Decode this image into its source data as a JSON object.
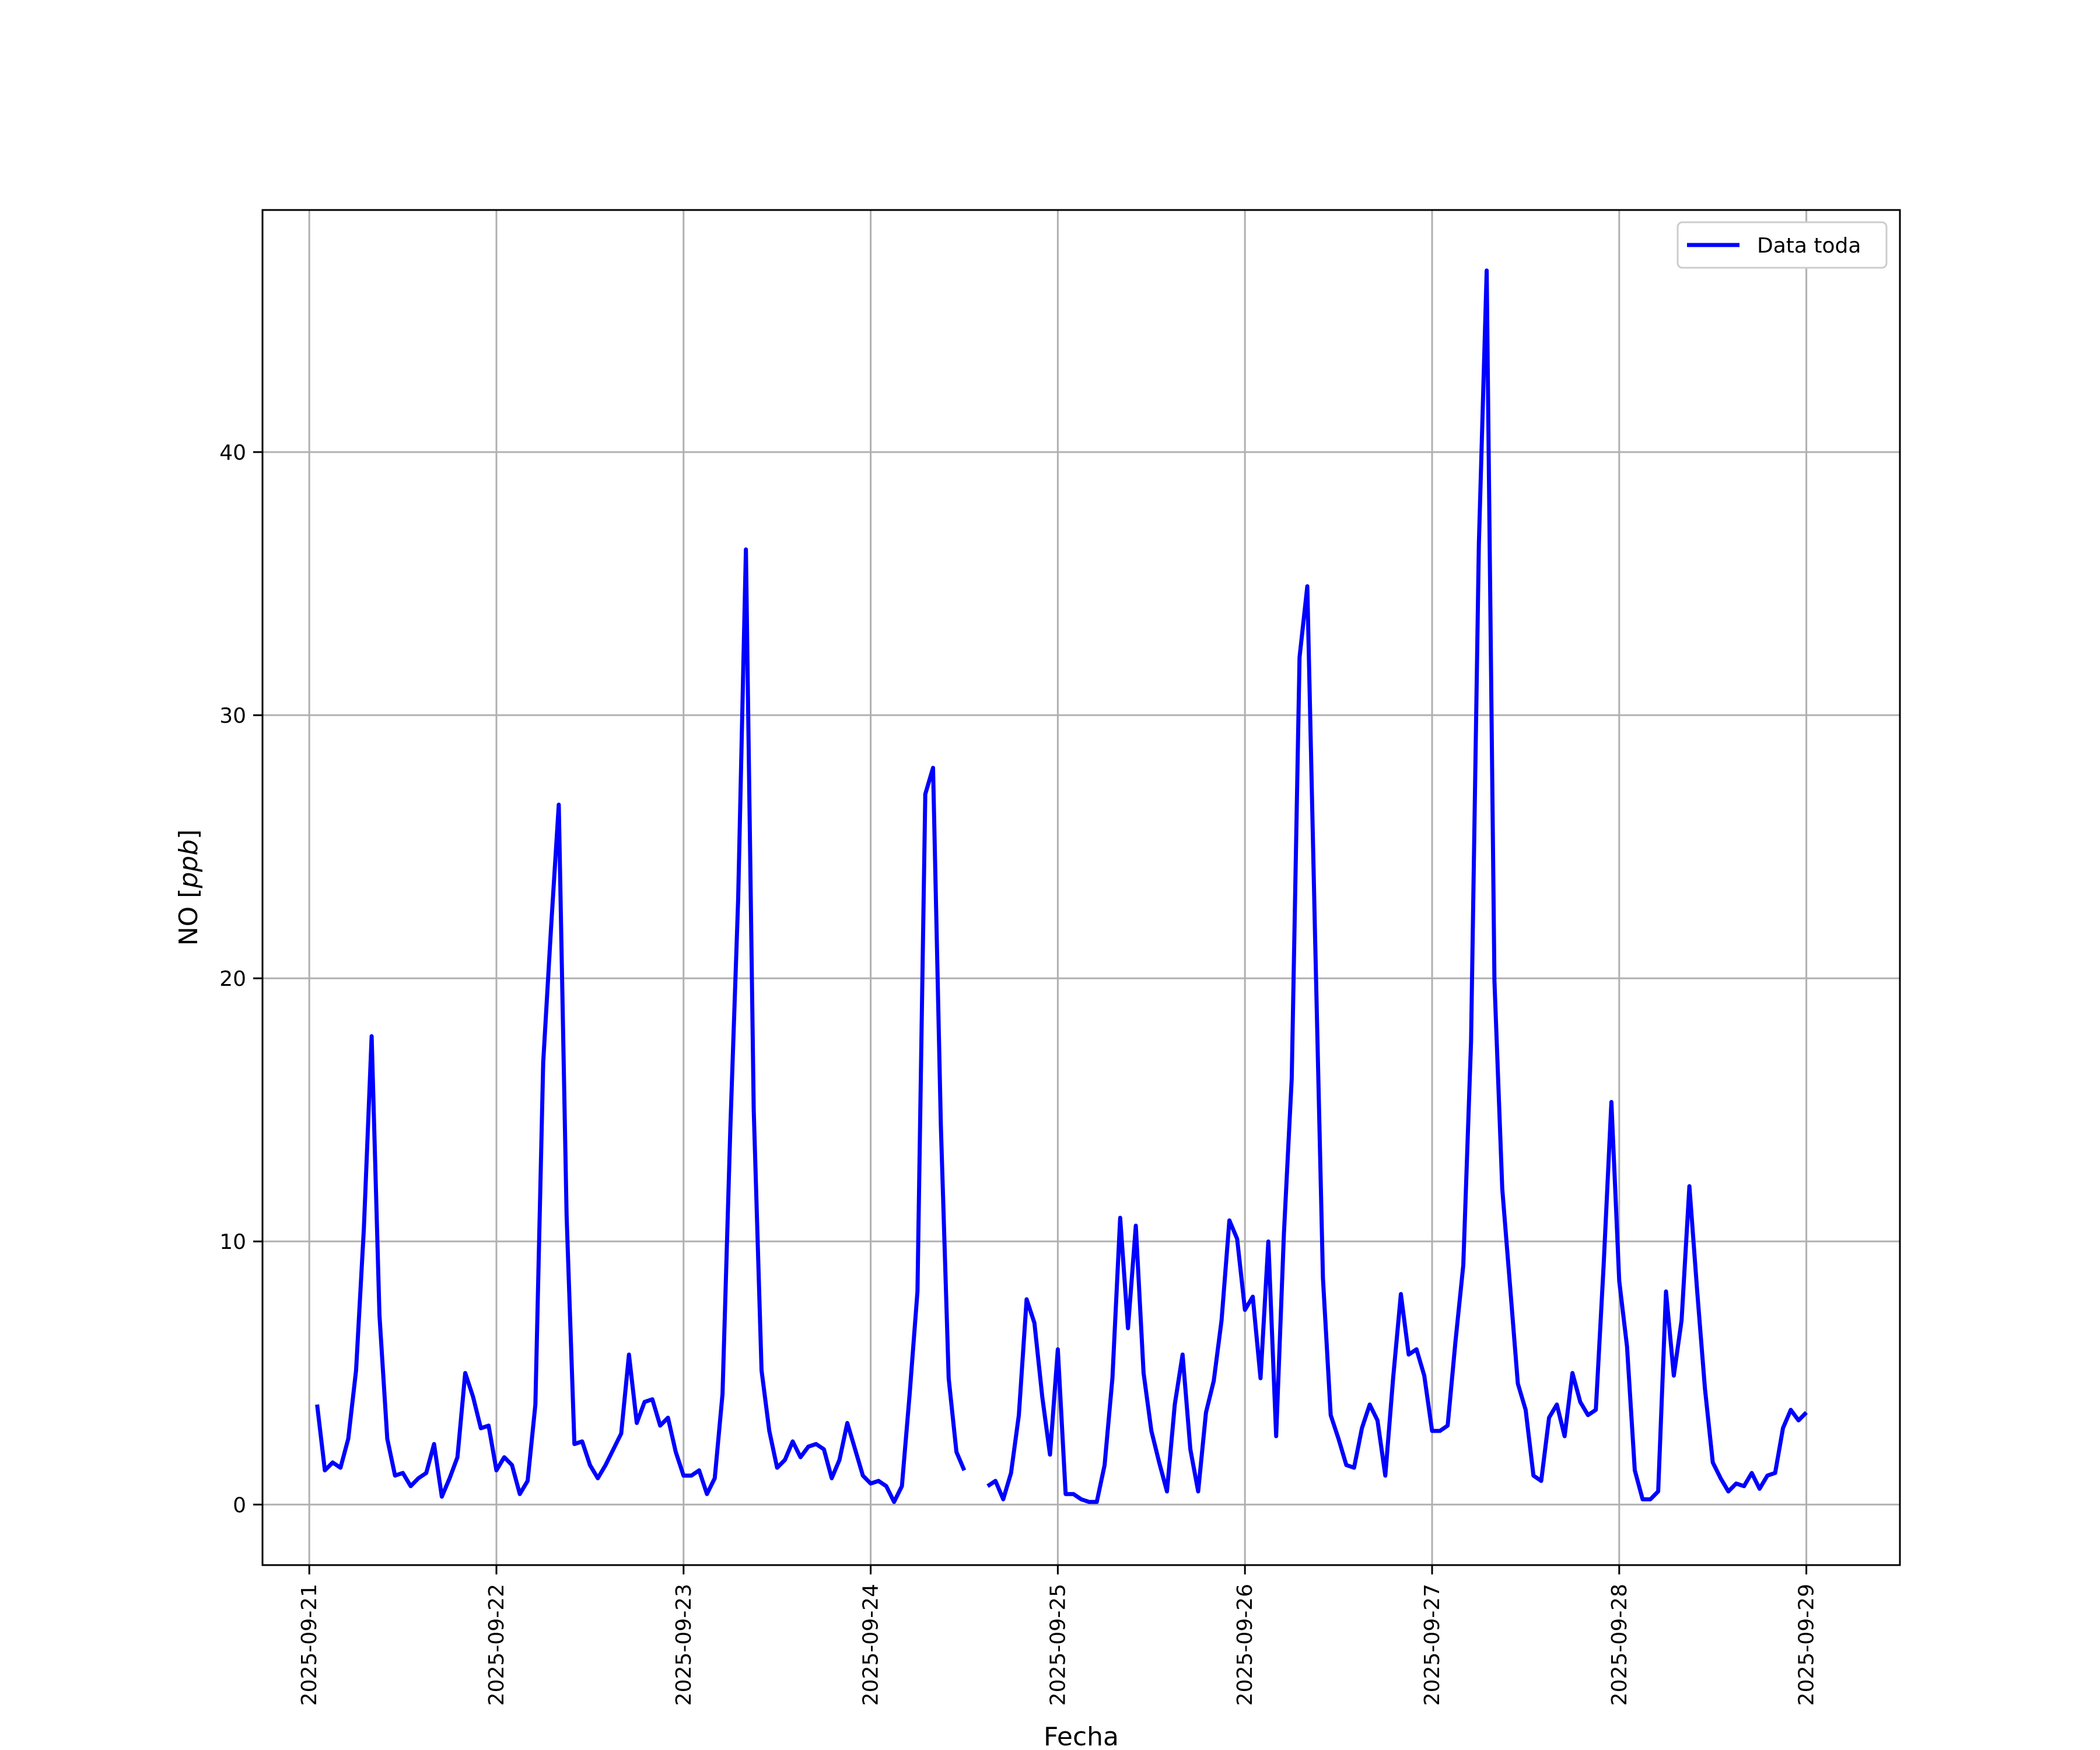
{
  "chart_data": {
    "type": "line",
    "title": "",
    "xlabel": "Fecha",
    "ylabel_main": "NO",
    "ylabel_unit": "ppb",
    "x_tick_labels": [
      "2025-09-21",
      "2025-09-22",
      "2025-09-23",
      "2025-09-24",
      "2025-09-25",
      "2025-09-26",
      "2025-09-27",
      "2025-09-28",
      "2025-09-29"
    ],
    "x_range": [
      "2025-09-20 18:00",
      "2025-09-29 12:00"
    ],
    "y_ticks": [
      0,
      10,
      20,
      30,
      40
    ],
    "ylim": [
      -2.3,
      49.2
    ],
    "grid": true,
    "legend_position": "top-right",
    "series": [
      {
        "name": "Data toda",
        "color": "#0000ff",
        "x": [
          "2025-09-21 01:00",
          "2025-09-21 02:00",
          "2025-09-21 03:00",
          "2025-09-21 04:00",
          "2025-09-21 05:00",
          "2025-09-21 06:00",
          "2025-09-21 07:00",
          "2025-09-21 08:00",
          "2025-09-21 09:00",
          "2025-09-21 10:00",
          "2025-09-21 11:00",
          "2025-09-21 12:00",
          "2025-09-21 13:00",
          "2025-09-21 14:00",
          "2025-09-21 15:00",
          "2025-09-21 16:00",
          "2025-09-21 17:00",
          "2025-09-21 18:00",
          "2025-09-21 19:00",
          "2025-09-21 20:00",
          "2025-09-21 21:00",
          "2025-09-21 22:00",
          "2025-09-21 23:00",
          "2025-09-22 00:00",
          "2025-09-22 01:00",
          "2025-09-22 02:00",
          "2025-09-22 03:00",
          "2025-09-22 04:00",
          "2025-09-22 05:00",
          "2025-09-22 06:00",
          "2025-09-22 07:00",
          "2025-09-22 08:00",
          "2025-09-22 09:00",
          "2025-09-22 10:00",
          "2025-09-22 11:00",
          "2025-09-22 12:00",
          "2025-09-22 13:00",
          "2025-09-22 14:00",
          "2025-09-22 15:00",
          "2025-09-22 16:00",
          "2025-09-22 17:00",
          "2025-09-22 18:00",
          "2025-09-22 19:00",
          "2025-09-22 20:00",
          "2025-09-22 21:00",
          "2025-09-22 22:00",
          "2025-09-22 23:00",
          "2025-09-23 00:00",
          "2025-09-23 01:00",
          "2025-09-23 02:00",
          "2025-09-23 03:00",
          "2025-09-23 04:00",
          "2025-09-23 05:00",
          "2025-09-23 06:00",
          "2025-09-23 07:00",
          "2025-09-23 08:00",
          "2025-09-23 09:00",
          "2025-09-23 10:00",
          "2025-09-23 11:00",
          "2025-09-23 12:00",
          "2025-09-23 13:00",
          "2025-09-23 14:00",
          "2025-09-23 15:00",
          "2025-09-23 16:00",
          "2025-09-23 17:00",
          "2025-09-23 18:00",
          "2025-09-23 19:00",
          "2025-09-23 20:00",
          "2025-09-23 21:00",
          "2025-09-23 22:00",
          "2025-09-23 23:00",
          "2025-09-24 00:00",
          "2025-09-24 01:00",
          "2025-09-24 02:00",
          "2025-09-24 03:00",
          "2025-09-24 04:00",
          "2025-09-24 05:00",
          "2025-09-24 06:00",
          "2025-09-24 07:00",
          "2025-09-24 08:00",
          "2025-09-24 09:00",
          "2025-09-24 10:00",
          "2025-09-24 11:00",
          "2025-09-24 12:00",
          "2025-09-24 15:00",
          "2025-09-24 16:00",
          "2025-09-24 17:00",
          "2025-09-24 18:00",
          "2025-09-24 19:00",
          "2025-09-24 20:00",
          "2025-09-24 21:00",
          "2025-09-24 22:00",
          "2025-09-24 23:00",
          "2025-09-25 00:00",
          "2025-09-25 01:00",
          "2025-09-25 02:00",
          "2025-09-25 03:00",
          "2025-09-25 04:00",
          "2025-09-25 05:00",
          "2025-09-25 06:00",
          "2025-09-25 07:00",
          "2025-09-25 08:00",
          "2025-09-25 09:00",
          "2025-09-25 10:00",
          "2025-09-25 11:00",
          "2025-09-25 12:00",
          "2025-09-25 13:00",
          "2025-09-25 14:00",
          "2025-09-25 15:00",
          "2025-09-25 16:00",
          "2025-09-25 17:00",
          "2025-09-25 18:00",
          "2025-09-25 19:00",
          "2025-09-25 20:00",
          "2025-09-25 21:00",
          "2025-09-25 22:00",
          "2025-09-25 23:00",
          "2025-09-26 00:00",
          "2025-09-26 01:00",
          "2025-09-26 02:00",
          "2025-09-26 03:00",
          "2025-09-26 04:00",
          "2025-09-26 05:00",
          "2025-09-26 06:00",
          "2025-09-26 07:00",
          "2025-09-26 08:00",
          "2025-09-26 09:00",
          "2025-09-26 10:00",
          "2025-09-26 11:00",
          "2025-09-26 12:00",
          "2025-09-26 13:00",
          "2025-09-26 14:00",
          "2025-09-26 15:00",
          "2025-09-26 16:00",
          "2025-09-26 17:00",
          "2025-09-26 18:00",
          "2025-09-26 19:00",
          "2025-09-26 20:00",
          "2025-09-26 21:00",
          "2025-09-26 22:00",
          "2025-09-26 23:00",
          "2025-09-27 00:00",
          "2025-09-27 01:00",
          "2025-09-27 02:00",
          "2025-09-27 03:00",
          "2025-09-27 04:00",
          "2025-09-27 05:00",
          "2025-09-27 06:00",
          "2025-09-27 07:00",
          "2025-09-27 08:00",
          "2025-09-27 09:00",
          "2025-09-27 10:00",
          "2025-09-27 11:00",
          "2025-09-27 12:00",
          "2025-09-27 13:00",
          "2025-09-27 14:00",
          "2025-09-27 15:00",
          "2025-09-27 16:00",
          "2025-09-27 17:00",
          "2025-09-27 18:00",
          "2025-09-27 19:00",
          "2025-09-27 20:00",
          "2025-09-27 21:00",
          "2025-09-27 22:00",
          "2025-09-27 23:00",
          "2025-09-28 00:00",
          "2025-09-28 01:00",
          "2025-09-28 02:00",
          "2025-09-28 03:00",
          "2025-09-28 04:00",
          "2025-09-28 05:00",
          "2025-09-28 06:00",
          "2025-09-28 07:00",
          "2025-09-28 08:00",
          "2025-09-28 09:00",
          "2025-09-28 10:00",
          "2025-09-28 11:00",
          "2025-09-28 12:00",
          "2025-09-28 13:00",
          "2025-09-28 14:00",
          "2025-09-28 15:00",
          "2025-09-28 16:00",
          "2025-09-28 17:00",
          "2025-09-28 18:00",
          "2025-09-28 19:00",
          "2025-09-28 20:00",
          "2025-09-28 21:00",
          "2025-09-28 22:00",
          "2025-09-28 23:00",
          "2025-09-29 00:00"
        ],
        "y": [
          3.8,
          1.3,
          1.6,
          1.4,
          2.5,
          5.1,
          10.5,
          17.8,
          7.2,
          2.5,
          1.1,
          1.2,
          0.7,
          1.0,
          1.2,
          2.3,
          0.3,
          1.0,
          1.8,
          5.0,
          4.1,
          2.9,
          3.0,
          1.3,
          1.8,
          1.5,
          0.4,
          0.9,
          3.8,
          16.8,
          21.9,
          26.6,
          11.0,
          2.3,
          2.4,
          1.5,
          1.0,
          1.5,
          2.1,
          2.7,
          5.7,
          3.1,
          3.9,
          4.0,
          3.0,
          3.3,
          2.0,
          1.1,
          1.1,
          1.3,
          0.4,
          1.0,
          4.2,
          14.3,
          23.0,
          36.3,
          15.0,
          5.1,
          2.8,
          1.4,
          1.7,
          2.4,
          1.8,
          2.2,
          2.3,
          2.1,
          1.0,
          1.7,
          3.1,
          2.1,
          1.1,
          0.8,
          0.9,
          0.7,
          0.1,
          0.7,
          4.2,
          8.1,
          27.0,
          28.0,
          14.4,
          4.8,
          2.0,
          1.3,
          0.7,
          0.9,
          0.2,
          1.2,
          3.4,
          7.8,
          6.9,
          4.1,
          1.9,
          5.9,
          0.4,
          0.4,
          0.2,
          0.1,
          0.1,
          1.5,
          4.8,
          10.9,
          6.7,
          10.6,
          5.0,
          2.8,
          1.6,
          0.5,
          3.8,
          5.7,
          2.1,
          0.5,
          3.5,
          4.7,
          7.0,
          10.8,
          10.1,
          7.4,
          7.9,
          4.8,
          10.0,
          2.6,
          10.3,
          16.2,
          32.2,
          34.9,
          21.5,
          8.6,
          3.4,
          2.5,
          1.5,
          1.4,
          2.9,
          3.8,
          3.2,
          1.1,
          4.8,
          8.0,
          5.7,
          5.9,
          4.9,
          2.8,
          2.8,
          3.0,
          6.2,
          9.1,
          17.6,
          36.5,
          46.9,
          19.9,
          12.0,
          8.3,
          4.6,
          3.6,
          1.1,
          0.9,
          3.3,
          3.8,
          2.6,
          5.0,
          3.9,
          3.4,
          3.6,
          9.1,
          15.3,
          8.5,
          6.0,
          1.3,
          0.2,
          0.2,
          0.5,
          8.1,
          4.9,
          7.0,
          12.1,
          8.1,
          4.4,
          1.6,
          1.0,
          0.5,
          0.8,
          0.7,
          1.2,
          0.6,
          1.1,
          1.2,
          2.9,
          3.6,
          3.2,
          3.5
        ]
      }
    ]
  }
}
